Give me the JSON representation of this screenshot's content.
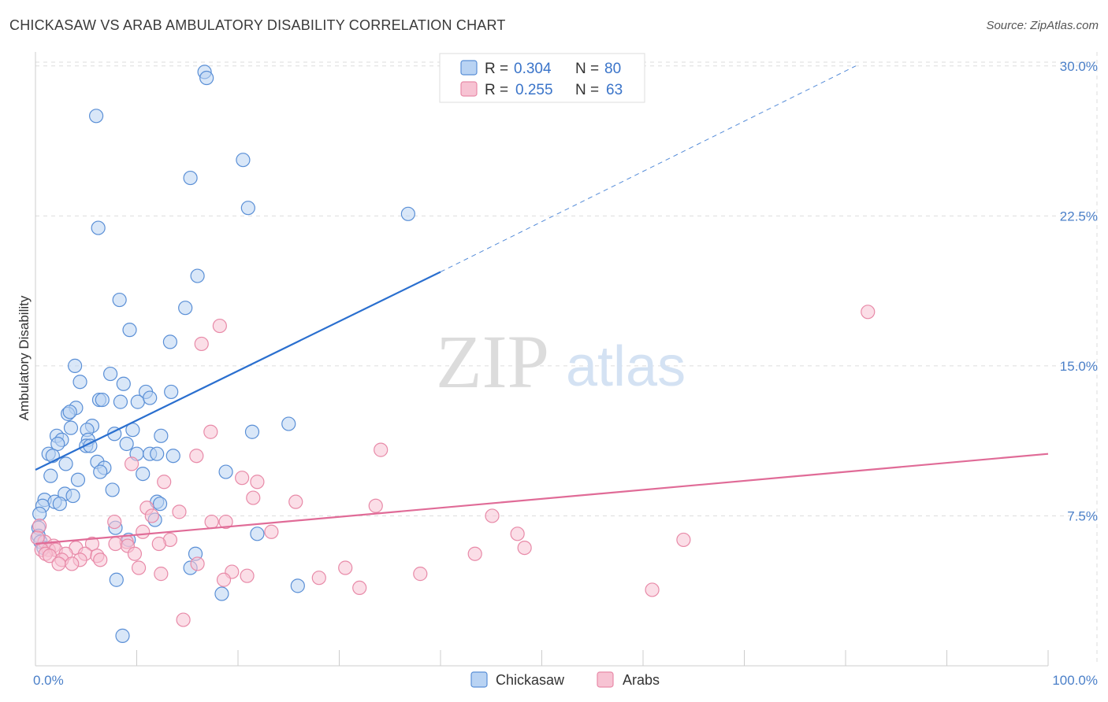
{
  "title": "CHICKASAW VS ARAB AMBULATORY DISABILITY CORRELATION CHART",
  "source": "Source: ZipAtlas.com",
  "watermark": {
    "part1": "ZIP",
    "part2": "atlas"
  },
  "colors": {
    "blue_fill": "#b9d3f3",
    "blue_stroke": "#5a8fd6",
    "blue_line": "#2a6fcf",
    "pink_fill": "#f7c3d3",
    "pink_stroke": "#e88aa8",
    "pink_line": "#e06b97",
    "grid": "#dddddd",
    "axis_text": "#4a7fc8"
  },
  "legend": {
    "row1": {
      "r_label": "R =",
      "r_value": "0.304",
      "n_label": "N =",
      "n_value": "80"
    },
    "row2": {
      "r_label": "R =",
      "r_value": "0.255",
      "n_label": "N =",
      "n_value": "63"
    }
  },
  "chart_data": {
    "type": "scatter",
    "title": "CHICKASAW VS ARAB AMBULATORY DISABILITY CORRELATION CHART",
    "xlabel": "",
    "ylabel": "Ambulatory Disability",
    "xlim": [
      0,
      100
    ],
    "ylim": [
      0,
      30.7
    ],
    "x_tick_labels": [
      "0.0%",
      "100.0%"
    ],
    "y_ticks": [
      7.5,
      15.0,
      22.5,
      30.0
    ],
    "y_tick_labels": [
      "7.5%",
      "15.0%",
      "22.5%",
      "30.0%"
    ],
    "grid": true,
    "legend_position": "top-center",
    "series": [
      {
        "name": "Chickasaw",
        "r": 0.304,
        "n": 80,
        "trend": {
          "x0": 0,
          "y0": 9.8,
          "x1": 40,
          "y1": 19.7,
          "dash_to_x": 81,
          "dash_to_y": 30.0
        },
        "points": [
          [
            16.7,
            29.7
          ],
          [
            16.9,
            29.4
          ],
          [
            6.0,
            27.5
          ],
          [
            20.5,
            25.3
          ],
          [
            15.3,
            24.4
          ],
          [
            21.0,
            22.9
          ],
          [
            6.2,
            21.9
          ],
          [
            36.8,
            22.6
          ],
          [
            16.0,
            19.5
          ],
          [
            8.3,
            18.3
          ],
          [
            14.8,
            17.9
          ],
          [
            9.3,
            16.8
          ],
          [
            13.3,
            16.2
          ],
          [
            3.9,
            15.0
          ],
          [
            7.4,
            14.6
          ],
          [
            4.4,
            14.2
          ],
          [
            8.7,
            14.1
          ],
          [
            10.9,
            13.7
          ],
          [
            13.4,
            13.7
          ],
          [
            6.3,
            13.3
          ],
          [
            6.6,
            13.3
          ],
          [
            8.4,
            13.2
          ],
          [
            10.1,
            13.2
          ],
          [
            11.3,
            13.4
          ],
          [
            4.0,
            12.9
          ],
          [
            3.2,
            12.6
          ],
          [
            3.4,
            12.7
          ],
          [
            25.0,
            12.1
          ],
          [
            5.6,
            12.0
          ],
          [
            3.5,
            11.9
          ],
          [
            5.1,
            11.8
          ],
          [
            21.4,
            11.7
          ],
          [
            7.8,
            11.6
          ],
          [
            9.6,
            11.8
          ],
          [
            12.4,
            11.5
          ],
          [
            2.1,
            11.5
          ],
          [
            2.6,
            11.3
          ],
          [
            5.2,
            11.3
          ],
          [
            2.2,
            11.1
          ],
          [
            5.0,
            11.0
          ],
          [
            5.4,
            11.0
          ],
          [
            9.0,
            11.1
          ],
          [
            10.0,
            10.6
          ],
          [
            11.3,
            10.6
          ],
          [
            12.0,
            10.6
          ],
          [
            13.6,
            10.5
          ],
          [
            1.3,
            10.6
          ],
          [
            1.7,
            10.5
          ],
          [
            3.0,
            10.1
          ],
          [
            6.1,
            10.2
          ],
          [
            6.8,
            9.9
          ],
          [
            10.6,
            9.6
          ],
          [
            6.4,
            9.7
          ],
          [
            18.8,
            9.7
          ],
          [
            1.5,
            9.5
          ],
          [
            4.2,
            9.3
          ],
          [
            7.6,
            8.8
          ],
          [
            2.9,
            8.6
          ],
          [
            3.7,
            8.5
          ],
          [
            0.9,
            8.3
          ],
          [
            1.9,
            8.2
          ],
          [
            2.4,
            8.1
          ],
          [
            0.7,
            8.0
          ],
          [
            12.0,
            8.2
          ],
          [
            12.3,
            8.1
          ],
          [
            0.4,
            7.6
          ],
          [
            11.8,
            7.3
          ],
          [
            0.3,
            6.9
          ],
          [
            7.9,
            6.9
          ],
          [
            21.9,
            6.6
          ],
          [
            0.3,
            6.5
          ],
          [
            9.2,
            6.3
          ],
          [
            15.8,
            5.6
          ],
          [
            15.3,
            4.9
          ],
          [
            8.0,
            4.3
          ],
          [
            25.9,
            4.0
          ],
          [
            18.4,
            3.6
          ],
          [
            8.6,
            1.5
          ],
          [
            0.5,
            6.2
          ],
          [
            0.8,
            5.9
          ]
        ]
      },
      {
        "name": "Arabs",
        "r": 0.255,
        "n": 63,
        "trend": {
          "x0": 0,
          "y0": 6.1,
          "x1": 100,
          "y1": 10.6
        },
        "points": [
          [
            82.2,
            17.7
          ],
          [
            18.2,
            17.0
          ],
          [
            16.4,
            16.1
          ],
          [
            17.3,
            11.7
          ],
          [
            34.1,
            10.8
          ],
          [
            15.9,
            10.5
          ],
          [
            9.5,
            10.1
          ],
          [
            20.4,
            9.4
          ],
          [
            12.7,
            9.2
          ],
          [
            21.9,
            9.2
          ],
          [
            21.5,
            8.4
          ],
          [
            25.7,
            8.2
          ],
          [
            33.6,
            8.0
          ],
          [
            11.0,
            7.9
          ],
          [
            14.2,
            7.7
          ],
          [
            11.5,
            7.5
          ],
          [
            45.1,
            7.5
          ],
          [
            17.4,
            7.2
          ],
          [
            18.8,
            7.2
          ],
          [
            7.8,
            7.2
          ],
          [
            23.3,
            6.7
          ],
          [
            10.6,
            6.7
          ],
          [
            47.6,
            6.6
          ],
          [
            64.0,
            6.3
          ],
          [
            9.0,
            6.2
          ],
          [
            13.3,
            6.3
          ],
          [
            12.2,
            6.1
          ],
          [
            5.6,
            6.1
          ],
          [
            7.9,
            6.1
          ],
          [
            9.1,
            6.0
          ],
          [
            0.4,
            7.0
          ],
          [
            0.9,
            6.2
          ],
          [
            1.8,
            6.0
          ],
          [
            4.0,
            5.9
          ],
          [
            1.3,
            5.8
          ],
          [
            2.0,
            5.8
          ],
          [
            3.0,
            5.6
          ],
          [
            4.9,
            5.6
          ],
          [
            6.1,
            5.5
          ],
          [
            9.8,
            5.6
          ],
          [
            48.3,
            5.9
          ],
          [
            43.4,
            5.6
          ],
          [
            0.6,
            5.8
          ],
          [
            1.0,
            5.6
          ],
          [
            1.4,
            5.5
          ],
          [
            2.6,
            5.3
          ],
          [
            4.4,
            5.3
          ],
          [
            6.4,
            5.3
          ],
          [
            2.3,
            5.1
          ],
          [
            3.6,
            5.1
          ],
          [
            16.0,
            5.1
          ],
          [
            10.2,
            4.9
          ],
          [
            30.6,
            4.9
          ],
          [
            19.4,
            4.7
          ],
          [
            12.4,
            4.6
          ],
          [
            20.9,
            4.5
          ],
          [
            38.0,
            4.6
          ],
          [
            28.0,
            4.4
          ],
          [
            18.6,
            4.3
          ],
          [
            32.0,
            3.9
          ],
          [
            60.9,
            3.8
          ],
          [
            14.6,
            2.3
          ],
          [
            0.2,
            6.4
          ]
        ]
      }
    ]
  }
}
